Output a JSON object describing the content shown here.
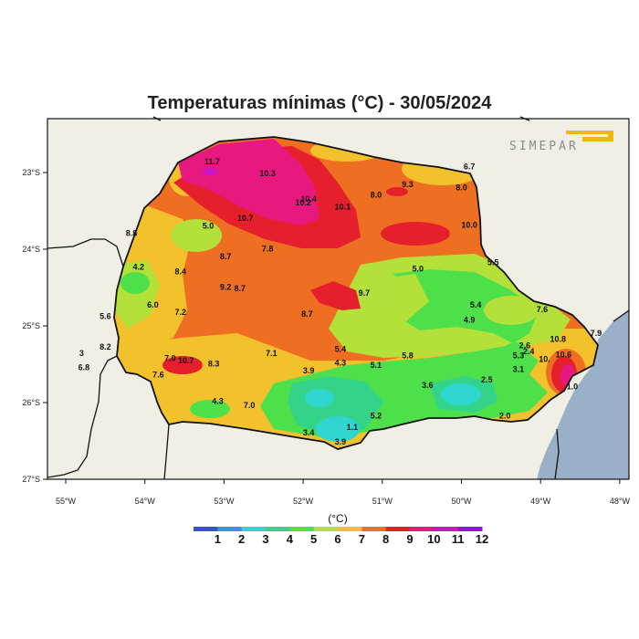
{
  "title": "Temperaturas mínimas (°C) - 30/05/2024",
  "logo_text": "SIMEPAR",
  "x_ticks": [
    "55°W",
    "54°W",
    "53°W",
    "52°W",
    "51°W",
    "50°W",
    "49°W",
    "48°W"
  ],
  "y_ticks": [
    "23°S",
    "24°S",
    "25°S",
    "26°S",
    "27°S"
  ],
  "legend": {
    "unit": "(°C)",
    "values": [
      "1",
      "2",
      "3",
      "4",
      "5",
      "6",
      "7",
      "8",
      "9",
      "10",
      "11",
      "12"
    ],
    "colors": [
      "#3a4fd8",
      "#3f8fe6",
      "#2fd6d0",
      "#33d48a",
      "#4ee04a",
      "#b4e03a",
      "#f2c12c",
      "#ee6f22",
      "#e51f2c",
      "#e8197e",
      "#c816c8",
      "#8a16e6"
    ]
  },
  "colors": {
    "land_bg": "#f0efe6",
    "ocean": "#9ab0c6",
    "border": "#111111"
  },
  "map_labels": [
    {
      "text": "11.7",
      "lon": -53.15,
      "lat": -22.89
    },
    {
      "text": "10.3",
      "lon": -52.45,
      "lat": -23.05
    },
    {
      "text": "10.4",
      "lon": -51.93,
      "lat": -23.38
    },
    {
      "text": "10.2",
      "lon": -52.0,
      "lat": -23.43
    },
    {
      "text": "10.1",
      "lon": -51.5,
      "lat": -23.48
    },
    {
      "text": "8.0",
      "lon": -51.08,
      "lat": -23.33
    },
    {
      "text": "9.3",
      "lon": -50.68,
      "lat": -23.19
    },
    {
      "text": "8.0",
      "lon": -50.0,
      "lat": -23.23
    },
    {
      "text": "6.7",
      "lon": -49.9,
      "lat": -22.96
    },
    {
      "text": "10.7",
      "lon": -52.73,
      "lat": -23.63
    },
    {
      "text": "10.0",
      "lon": -49.9,
      "lat": -23.72
    },
    {
      "text": "8.8",
      "lon": -54.17,
      "lat": -23.83
    },
    {
      "text": "5.0",
      "lon": -53.2,
      "lat": -23.73
    },
    {
      "text": "7.8",
      "lon": -52.45,
      "lat": -24.03
    },
    {
      "text": "8.7",
      "lon": -52.98,
      "lat": -24.13
    },
    {
      "text": "4.2",
      "lon": -54.08,
      "lat": -24.27
    },
    {
      "text": "8.4",
      "lon": -53.55,
      "lat": -24.33
    },
    {
      "text": "5.0",
      "lon": -50.55,
      "lat": -24.29
    },
    {
      "text": "5.5",
      "lon": -49.6,
      "lat": -24.21
    },
    {
      "text": "9.2",
      "lon": -52.98,
      "lat": -24.53
    },
    {
      "text": "8.7",
      "lon": -52.8,
      "lat": -24.55
    },
    {
      "text": "9.7",
      "lon": -51.23,
      "lat": -24.61
    },
    {
      "text": "6.0",
      "lon": -53.9,
      "lat": -24.76
    },
    {
      "text": "7.2",
      "lon": -53.55,
      "lat": -24.86
    },
    {
      "text": "5.6",
      "lon": -54.5,
      "lat": -24.91
    },
    {
      "text": "8.7",
      "lon": -51.95,
      "lat": -24.88
    },
    {
      "text": "5.4",
      "lon": -49.82,
      "lat": -24.76
    },
    {
      "text": "4.9",
      "lon": -49.9,
      "lat": -24.96
    },
    {
      "text": "7.6",
      "lon": -48.98,
      "lat": -24.82
    },
    {
      "text": "3",
      "lon": -54.8,
      "lat": -25.39
    },
    {
      "text": "8.2",
      "lon": -54.5,
      "lat": -25.31
    },
    {
      "text": "5.4",
      "lon": -51.53,
      "lat": -25.34
    },
    {
      "text": "7.1",
      "lon": -52.4,
      "lat": -25.39
    },
    {
      "text": "5.8",
      "lon": -50.68,
      "lat": -25.42
    },
    {
      "text": "10.8",
      "lon": -48.78,
      "lat": -25.21
    },
    {
      "text": "7.9",
      "lon": -48.3,
      "lat": -25.13
    },
    {
      "text": "2.6",
      "lon": -49.2,
      "lat": -25.29
    },
    {
      "text": "2.4",
      "lon": -49.15,
      "lat": -25.37
    },
    {
      "text": "5.3",
      "lon": -49.28,
      "lat": -25.42
    },
    {
      "text": "7.0",
      "lon": -53.68,
      "lat": -25.46
    },
    {
      "text": "10.7",
      "lon": -53.48,
      "lat": -25.49
    },
    {
      "text": "8.3",
      "lon": -53.13,
      "lat": -25.53
    },
    {
      "text": "6.8",
      "lon": -54.77,
      "lat": -25.58
    },
    {
      "text": "4.3",
      "lon": -51.53,
      "lat": -25.52
    },
    {
      "text": "5.1",
      "lon": -51.08,
      "lat": -25.55
    },
    {
      "text": "3.9",
      "lon": -51.93,
      "lat": -25.62
    },
    {
      "text": "3.1",
      "lon": -49.28,
      "lat": -25.6
    },
    {
      "text": "10.",
      "lon": -48.95,
      "lat": -25.47
    },
    {
      "text": "10.6",
      "lon": -48.71,
      "lat": -25.41
    },
    {
      "text": "7.6",
      "lon": -53.83,
      "lat": -25.67
    },
    {
      "text": "3.6",
      "lon": -50.43,
      "lat": -25.81
    },
    {
      "text": "2.5",
      "lon": -49.68,
      "lat": -25.74
    },
    {
      "text": "1.0",
      "lon": -48.6,
      "lat": -25.83
    },
    {
      "text": "4.3",
      "lon": -53.08,
      "lat": -26.02
    },
    {
      "text": "7.0",
      "lon": -52.68,
      "lat": -26.07
    },
    {
      "text": "5.2",
      "lon": -51.08,
      "lat": -26.21
    },
    {
      "text": "2.0",
      "lon": -49.45,
      "lat": -26.21
    },
    {
      "text": "1.1",
      "lon": -51.38,
      "lat": -26.36
    },
    {
      "text": "3.4",
      "lon": -51.93,
      "lat": -26.43
    },
    {
      "text": "3.9",
      "lon": -51.53,
      "lat": -26.55
    }
  ]
}
